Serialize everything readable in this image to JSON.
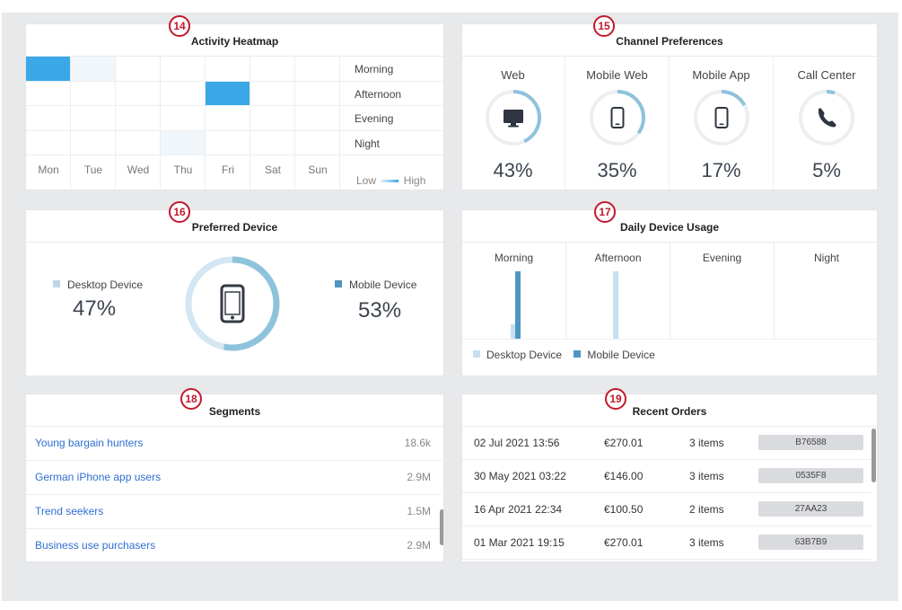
{
  "heatmap": {
    "badge": "14",
    "title": "Activity Heatmap",
    "rows": [
      "Morning",
      "Afternoon",
      "Evening",
      "Night"
    ],
    "days": [
      "Mon",
      "Tue",
      "Wed",
      "Thu",
      "Fri",
      "Sat",
      "Sun"
    ],
    "legend_low": "Low",
    "legend_high": "High",
    "intensity": [
      [
        1.0,
        0.08,
        0,
        0,
        0,
        0,
        0
      ],
      [
        0,
        0,
        0,
        0,
        1.0,
        0,
        0
      ],
      [
        0,
        0,
        0,
        0,
        0,
        0,
        0
      ],
      [
        0,
        0,
        0,
        0.08,
        0,
        0,
        0
      ]
    ],
    "colors": {
      "high": "#3aa8e6",
      "low": "#f1f6fa"
    }
  },
  "channels": {
    "badge": "15",
    "title": "Channel Preferences",
    "items": [
      {
        "name": "Web",
        "value": "43%",
        "fraction": 0.43,
        "icon": "desktop-icon"
      },
      {
        "name": "Mobile Web",
        "value": "35%",
        "fraction": 0.35,
        "icon": "mobile-icon"
      },
      {
        "name": "Mobile App",
        "value": "17%",
        "fraction": 0.17,
        "icon": "mobile-icon"
      },
      {
        "name": "Call Center",
        "value": "5%",
        "fraction": 0.05,
        "icon": "phone-icon"
      }
    ],
    "colors": {
      "ring": "#8fc3dc",
      "track": "#eceef1",
      "icon": "#2e3540"
    }
  },
  "preferred": {
    "badge": "16",
    "title": "Preferred Device",
    "desktop_label": "Desktop Device",
    "desktop_value": "47%",
    "desktop_fraction": 0.47,
    "mobile_label": "Mobile Device",
    "mobile_value": "53%",
    "mobile_fraction": 0.53,
    "colors": {
      "desktop": "#d4e6f1",
      "mobile": "#8fc3dc",
      "desktop_sq": "#bcd8e8",
      "mobile_sq": "#4f96c2"
    }
  },
  "daily": {
    "badge": "17",
    "title": "Daily Device Usage",
    "periods": [
      "Morning",
      "Afternoon",
      "Evening",
      "Night"
    ],
    "desktop": [
      0.22,
      1.0,
      0,
      0
    ],
    "mobile": [
      1.0,
      0,
      0,
      0
    ],
    "legend_desktop": "Desktop Device",
    "legend_mobile": "Mobile Device",
    "colors": {
      "desktop": "#c7e0ee",
      "mobile": "#4f96c2"
    }
  },
  "segments": {
    "badge": "18",
    "title": "Segments",
    "items": [
      {
        "name": "Young bargain hunters",
        "value": "18.6k"
      },
      {
        "name": "German iPhone app users",
        "value": "2.9M"
      },
      {
        "name": "Trend seekers",
        "value": "1.5M"
      },
      {
        "name": "Business use purchasers",
        "value": "2.9M"
      }
    ]
  },
  "orders": {
    "badge": "19",
    "title": "Recent Orders",
    "items": [
      {
        "date": "02 Jul 2021 13:56",
        "amount": "€270.01",
        "count": "3 items",
        "id": "B76588"
      },
      {
        "date": "30 May 2021 03:22",
        "amount": "€146.00",
        "count": "3 items",
        "id": "0535F8"
      },
      {
        "date": "16 Apr 2021 22:34",
        "amount": "€100.50",
        "count": "2 items",
        "id": "27AA23"
      },
      {
        "date": "01 Mar 2021 19:15",
        "amount": "€270.01",
        "count": "3 items",
        "id": "63B7B9"
      }
    ]
  }
}
